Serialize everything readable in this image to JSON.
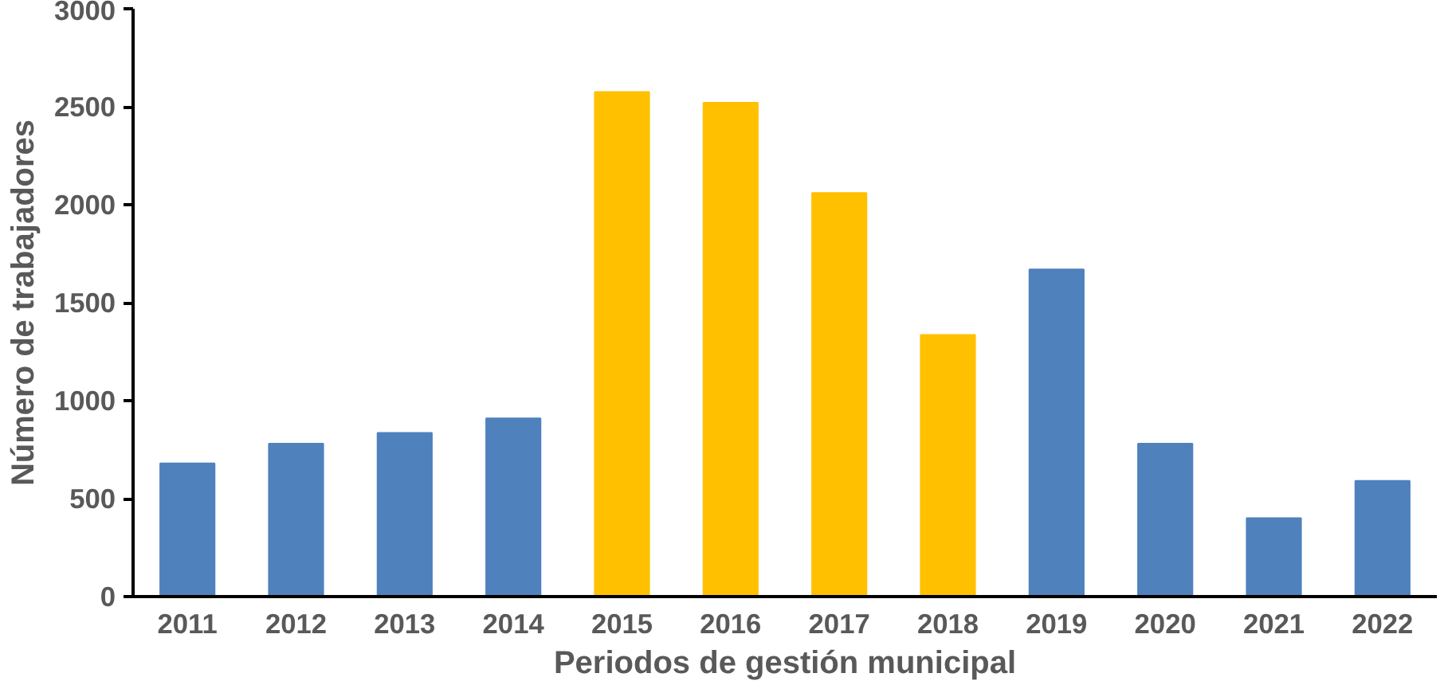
{
  "chart_data": {
    "type": "bar",
    "xlabel": "Periodos de gestión municipal",
    "ylabel": "Número de trabajadores",
    "categories": [
      "2011",
      "2012",
      "2013",
      "2014",
      "2015",
      "2016",
      "2017",
      "2018",
      "2019",
      "2020",
      "2021",
      "2022"
    ],
    "values": [
      680,
      780,
      835,
      910,
      2575,
      2520,
      2060,
      1335,
      1670,
      780,
      400,
      590
    ],
    "colors": [
      "#4f81bd",
      "#4f81bd",
      "#4f81bd",
      "#4f81bd",
      "#ffc000",
      "#ffc000",
      "#ffc000",
      "#ffc000",
      "#4f81bd",
      "#4f81bd",
      "#4f81bd",
      "#4f81bd"
    ],
    "ylim": [
      0,
      3000
    ],
    "yticks": [
      0,
      500,
      1000,
      1500,
      2000,
      2500,
      3000
    ],
    "grid": false
  }
}
